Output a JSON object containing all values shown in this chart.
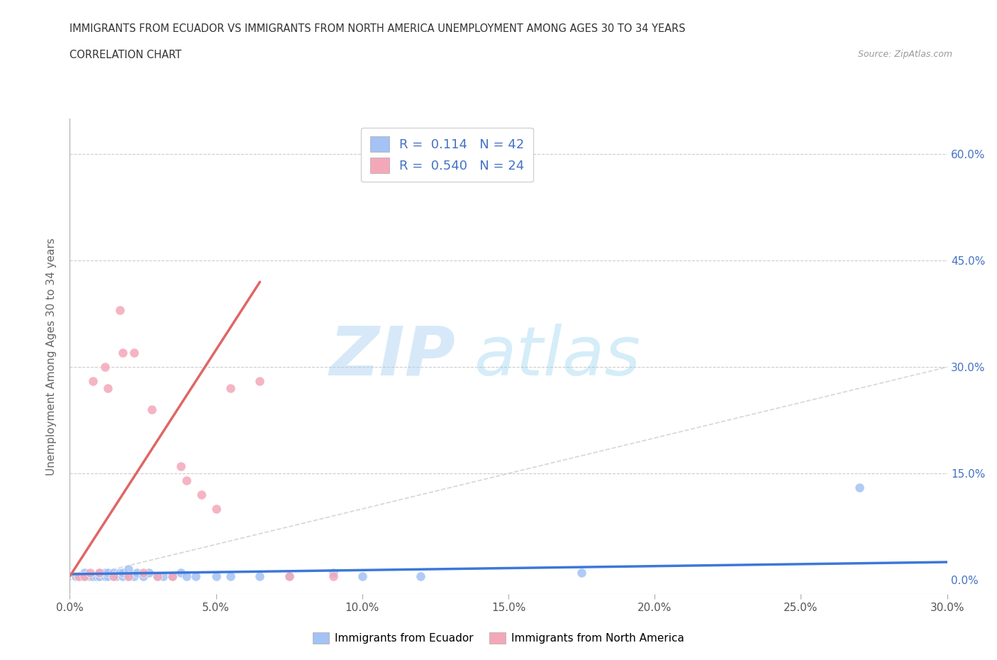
{
  "title_line1": "IMMIGRANTS FROM ECUADOR VS IMMIGRANTS FROM NORTH AMERICA UNEMPLOYMENT AMONG AGES 30 TO 34 YEARS",
  "title_line2": "CORRELATION CHART",
  "source_text": "Source: ZipAtlas.com",
  "ylabel": "Unemployment Among Ages 30 to 34 years",
  "xlim": [
    0.0,
    0.3
  ],
  "ylim": [
    -0.02,
    0.65
  ],
  "xtick_values": [
    0.0,
    0.05,
    0.1,
    0.15,
    0.2,
    0.25,
    0.3
  ],
  "xtick_labels": [
    "0.0%",
    "5.0%",
    "10.0%",
    "15.0%",
    "20.0%",
    "25.0%",
    "30.0%"
  ],
  "ytick_values": [
    0.0,
    0.15,
    0.3,
    0.45,
    0.6
  ],
  "ytick_labels": [
    "0.0%",
    "15.0%",
    "30.0%",
    "45.0%",
    "60.0%"
  ],
  "blue_color": "#a4c2f4",
  "pink_color": "#f4a7b9",
  "trend_blue_color": "#3c78d8",
  "trend_pink_color": "#e06666",
  "diagonal_color": "#cccccc",
  "R_blue": 0.114,
  "N_blue": 42,
  "R_pink": 0.54,
  "N_pink": 24,
  "legend_label_blue": "Immigrants from Ecuador",
  "legend_label_pink": "Immigrants from North America",
  "watermark_zip": "ZIP",
  "watermark_atlas": "atlas",
  "blue_scatter_x": [
    0.002,
    0.003,
    0.004,
    0.005,
    0.005,
    0.007,
    0.008,
    0.009,
    0.01,
    0.01,
    0.01,
    0.012,
    0.012,
    0.013,
    0.013,
    0.015,
    0.015,
    0.016,
    0.017,
    0.018,
    0.018,
    0.02,
    0.02,
    0.022,
    0.023,
    0.025,
    0.027,
    0.03,
    0.032,
    0.035,
    0.038,
    0.04,
    0.043,
    0.05,
    0.055,
    0.065,
    0.075,
    0.09,
    0.1,
    0.12,
    0.175,
    0.27
  ],
  "blue_scatter_y": [
    0.005,
    0.005,
    0.005,
    0.005,
    0.01,
    0.005,
    0.005,
    0.005,
    0.005,
    0.005,
    0.01,
    0.005,
    0.01,
    0.005,
    0.01,
    0.005,
    0.01,
    0.005,
    0.01,
    0.005,
    0.01,
    0.005,
    0.015,
    0.005,
    0.01,
    0.005,
    0.01,
    0.005,
    0.005,
    0.005,
    0.01,
    0.005,
    0.005,
    0.005,
    0.005,
    0.005,
    0.005,
    0.01,
    0.005,
    0.005,
    0.01,
    0.13
  ],
  "pink_scatter_x": [
    0.003,
    0.005,
    0.007,
    0.008,
    0.01,
    0.012,
    0.013,
    0.015,
    0.017,
    0.018,
    0.02,
    0.022,
    0.025,
    0.028,
    0.03,
    0.035,
    0.038,
    0.04,
    0.045,
    0.05,
    0.055,
    0.065,
    0.075,
    0.09
  ],
  "pink_scatter_y": [
    0.005,
    0.005,
    0.01,
    0.28,
    0.01,
    0.3,
    0.27,
    0.005,
    0.38,
    0.32,
    0.005,
    0.32,
    0.01,
    0.24,
    0.005,
    0.005,
    0.16,
    0.14,
    0.12,
    0.1,
    0.27,
    0.28,
    0.005,
    0.005
  ],
  "trend_pink_x0": 0.0,
  "trend_pink_y0": 0.005,
  "trend_pink_x1": 0.065,
  "trend_pink_y1": 0.42,
  "trend_blue_x0": 0.0,
  "trend_blue_y0": 0.008,
  "trend_blue_x1": 0.3,
  "trend_blue_y1": 0.025
}
